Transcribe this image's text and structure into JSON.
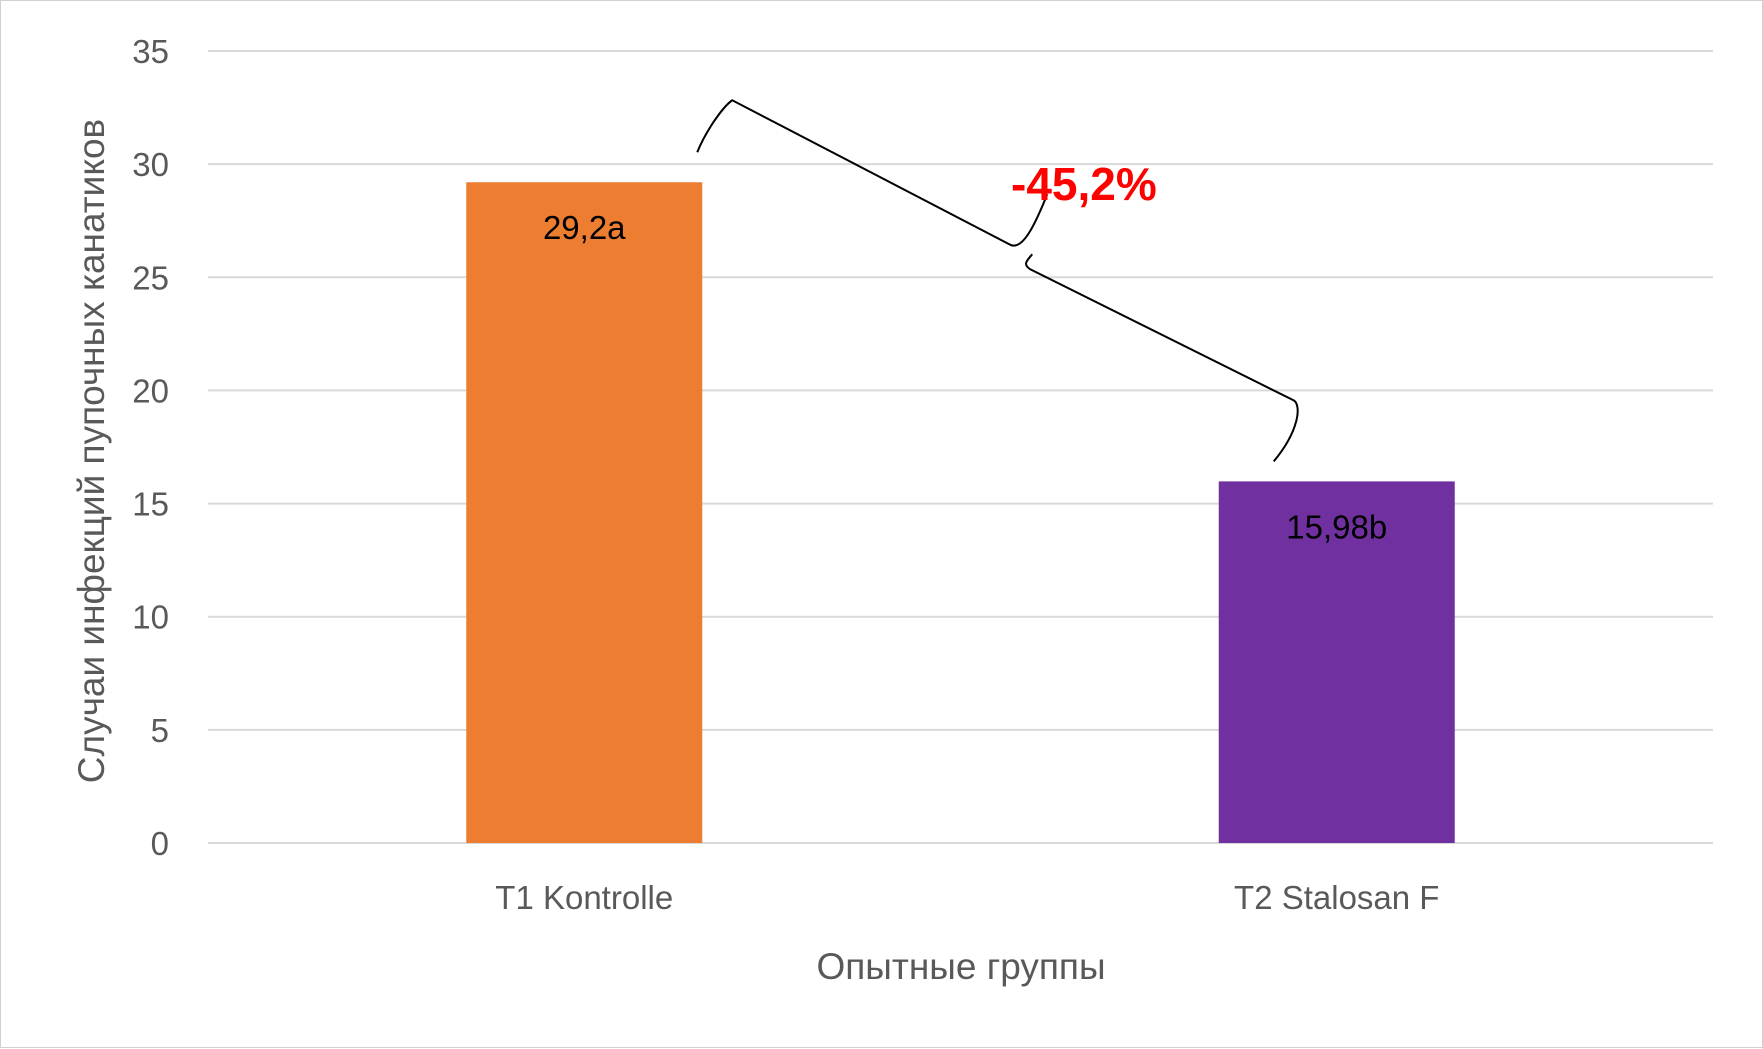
{
  "chart_data": {
    "type": "bar",
    "title": "",
    "xlabel": "Опытные группы",
    "ylabel": "Случаи инфекций пупочных канатиков",
    "categories": [
      "T1 Kontrolle",
      "T2 Stalosan F"
    ],
    "values": [
      29.2,
      15.98
    ],
    "data_labels": [
      "29,2a",
      "15,98b"
    ],
    "colors": [
      "#ED7D31",
      "#7030A0"
    ],
    "ylim": [
      0,
      35
    ],
    "yticks": [
      0,
      5,
      10,
      15,
      20,
      25,
      30,
      35
    ],
    "grid": true,
    "legend": "none",
    "annotation": {
      "text": "-45,2%",
      "color": "#FF0000"
    }
  }
}
